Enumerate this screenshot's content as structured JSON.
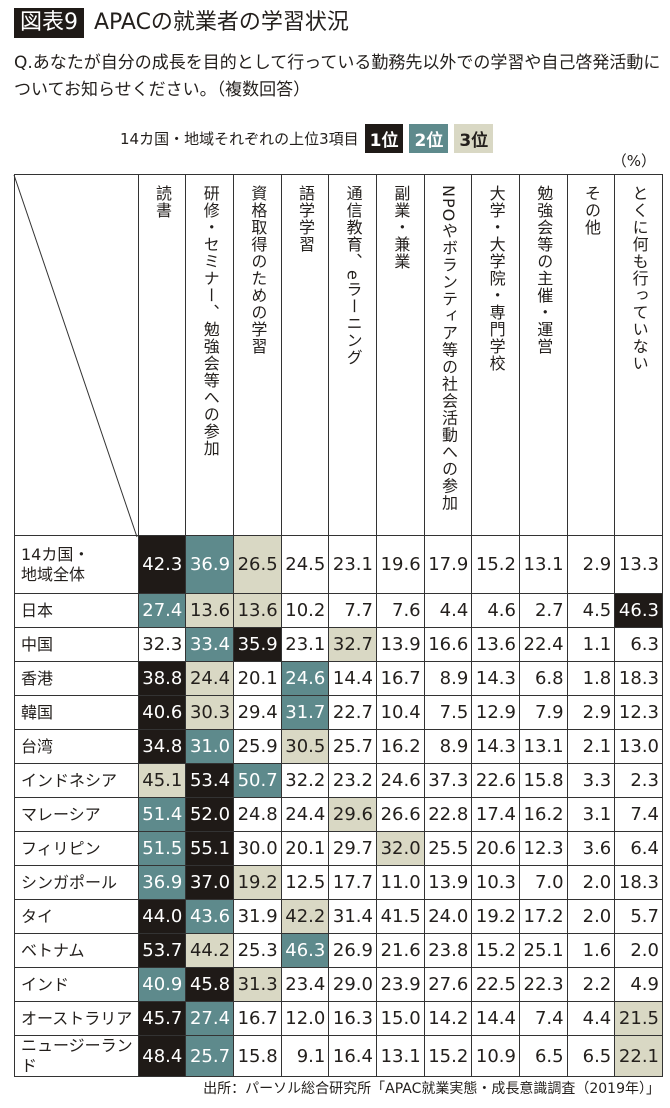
{
  "figure_label": "図表9",
  "title": "APACの就業者の学習状況",
  "question": "Q.あなたが自分の成長を目的として行っている勤務先以外での学習や自己啓発活動についてお知らせください。（複数回答）",
  "legend": {
    "caption": "14カ国・地域それぞれの上位3項目",
    "items": [
      {
        "label": "1位",
        "color": "#1f1a17"
      },
      {
        "label": "2位",
        "color": "#5e8a8c"
      },
      {
        "label": "3位",
        "color": "#d9d8c4"
      }
    ]
  },
  "unit": "（%）",
  "source": "出所：パーソル総合研究所「APAC就業実態・成長意識調査（2019年）」",
  "chart_data": {
    "type": "table",
    "columns": [
      "読書",
      "研修・セミナー、勉強会等への参加",
      "資格取得のための学習",
      "語学学習",
      "通信教育、eラーニング",
      "副業・兼業",
      "NPOやボランティア等の社会活動への参加",
      "大学・大学院・専門学校",
      "勉強会等の主催・運営",
      "その他",
      "とくに何も行っていない"
    ],
    "rows": [
      {
        "label": "14カ国・地域全体",
        "values": [
          42.3,
          36.9,
          26.5,
          24.5,
          23.1,
          19.6,
          17.9,
          15.2,
          13.1,
          2.9,
          13.3
        ],
        "ranks": [
          1,
          2,
          3,
          0,
          0,
          0,
          0,
          0,
          0,
          0,
          0
        ]
      },
      {
        "label": "日本",
        "values": [
          27.4,
          13.6,
          13.6,
          10.2,
          7.7,
          7.6,
          4.4,
          4.6,
          2.7,
          4.5,
          46.3
        ],
        "ranks": [
          2,
          3,
          3,
          0,
          0,
          0,
          0,
          0,
          0,
          0,
          1
        ]
      },
      {
        "label": "中国",
        "values": [
          32.3,
          33.4,
          35.9,
          23.1,
          32.7,
          13.9,
          16.6,
          13.6,
          22.4,
          1.1,
          6.3
        ],
        "ranks": [
          0,
          2,
          1,
          0,
          3,
          0,
          0,
          0,
          0,
          0,
          0
        ]
      },
      {
        "label": "香港",
        "values": [
          38.8,
          24.4,
          20.1,
          24.6,
          14.4,
          16.7,
          8.9,
          14.3,
          6.8,
          1.8,
          18.3
        ],
        "ranks": [
          1,
          3,
          0,
          2,
          0,
          0,
          0,
          0,
          0,
          0,
          0
        ]
      },
      {
        "label": "韓国",
        "values": [
          40.6,
          30.3,
          29.4,
          31.7,
          22.7,
          10.4,
          7.5,
          12.9,
          7.9,
          2.9,
          12.3
        ],
        "ranks": [
          1,
          3,
          0,
          2,
          0,
          0,
          0,
          0,
          0,
          0,
          0
        ]
      },
      {
        "label": "台湾",
        "values": [
          34.8,
          31.0,
          25.9,
          30.5,
          25.7,
          16.2,
          8.9,
          14.3,
          13.1,
          2.1,
          13.0
        ],
        "ranks": [
          1,
          2,
          0,
          3,
          0,
          0,
          0,
          0,
          0,
          0,
          0
        ]
      },
      {
        "label": "インドネシア",
        "values": [
          45.1,
          53.4,
          50.7,
          32.2,
          23.2,
          24.6,
          37.3,
          22.6,
          15.8,
          3.3,
          2.3
        ],
        "ranks": [
          3,
          1,
          2,
          0,
          0,
          0,
          0,
          0,
          0,
          0,
          0
        ]
      },
      {
        "label": "マレーシア",
        "values": [
          51.4,
          52.0,
          24.8,
          24.4,
          29.6,
          26.6,
          22.8,
          17.4,
          16.2,
          3.1,
          7.4
        ],
        "ranks": [
          2,
          1,
          0,
          0,
          3,
          0,
          0,
          0,
          0,
          0,
          0
        ]
      },
      {
        "label": "フィリピン",
        "values": [
          51.5,
          55.1,
          30.0,
          20.1,
          29.7,
          32.0,
          25.5,
          20.6,
          12.3,
          3.6,
          6.4
        ],
        "ranks": [
          2,
          1,
          0,
          0,
          0,
          3,
          0,
          0,
          0,
          0,
          0
        ]
      },
      {
        "label": "シンガポール",
        "values": [
          36.9,
          37.0,
          19.2,
          12.5,
          17.7,
          11.0,
          13.9,
          10.3,
          7.0,
          2.0,
          18.3
        ],
        "ranks": [
          2,
          1,
          3,
          0,
          0,
          0,
          0,
          0,
          0,
          0,
          0
        ]
      },
      {
        "label": "タイ",
        "values": [
          44.0,
          43.6,
          31.9,
          42.2,
          31.4,
          41.5,
          24.0,
          19.2,
          17.2,
          2.0,
          5.7
        ],
        "ranks": [
          1,
          2,
          0,
          3,
          0,
          0,
          0,
          0,
          0,
          0,
          0
        ]
      },
      {
        "label": "ベトナム",
        "values": [
          53.7,
          44.2,
          25.3,
          46.3,
          26.9,
          21.6,
          23.8,
          15.2,
          25.1,
          1.6,
          2.0
        ],
        "ranks": [
          1,
          3,
          0,
          2,
          0,
          0,
          0,
          0,
          0,
          0,
          0
        ]
      },
      {
        "label": "インド",
        "values": [
          40.9,
          45.8,
          31.3,
          23.4,
          29.0,
          23.9,
          27.6,
          22.5,
          22.3,
          2.2,
          4.9
        ],
        "ranks": [
          2,
          1,
          3,
          0,
          0,
          0,
          0,
          0,
          0,
          0,
          0
        ]
      },
      {
        "label": "オーストラリア",
        "values": [
          45.7,
          27.4,
          16.7,
          12.0,
          16.3,
          15.0,
          14.2,
          14.4,
          7.4,
          4.4,
          21.5
        ],
        "ranks": [
          1,
          2,
          0,
          0,
          0,
          0,
          0,
          0,
          0,
          0,
          3
        ]
      },
      {
        "label": "ニュージーランド",
        "values": [
          48.4,
          25.7,
          15.8,
          9.1,
          16.4,
          13.1,
          15.2,
          10.9,
          6.5,
          6.5,
          22.1
        ],
        "ranks": [
          1,
          2,
          0,
          0,
          0,
          0,
          0,
          0,
          0,
          0,
          3
        ]
      }
    ]
  }
}
